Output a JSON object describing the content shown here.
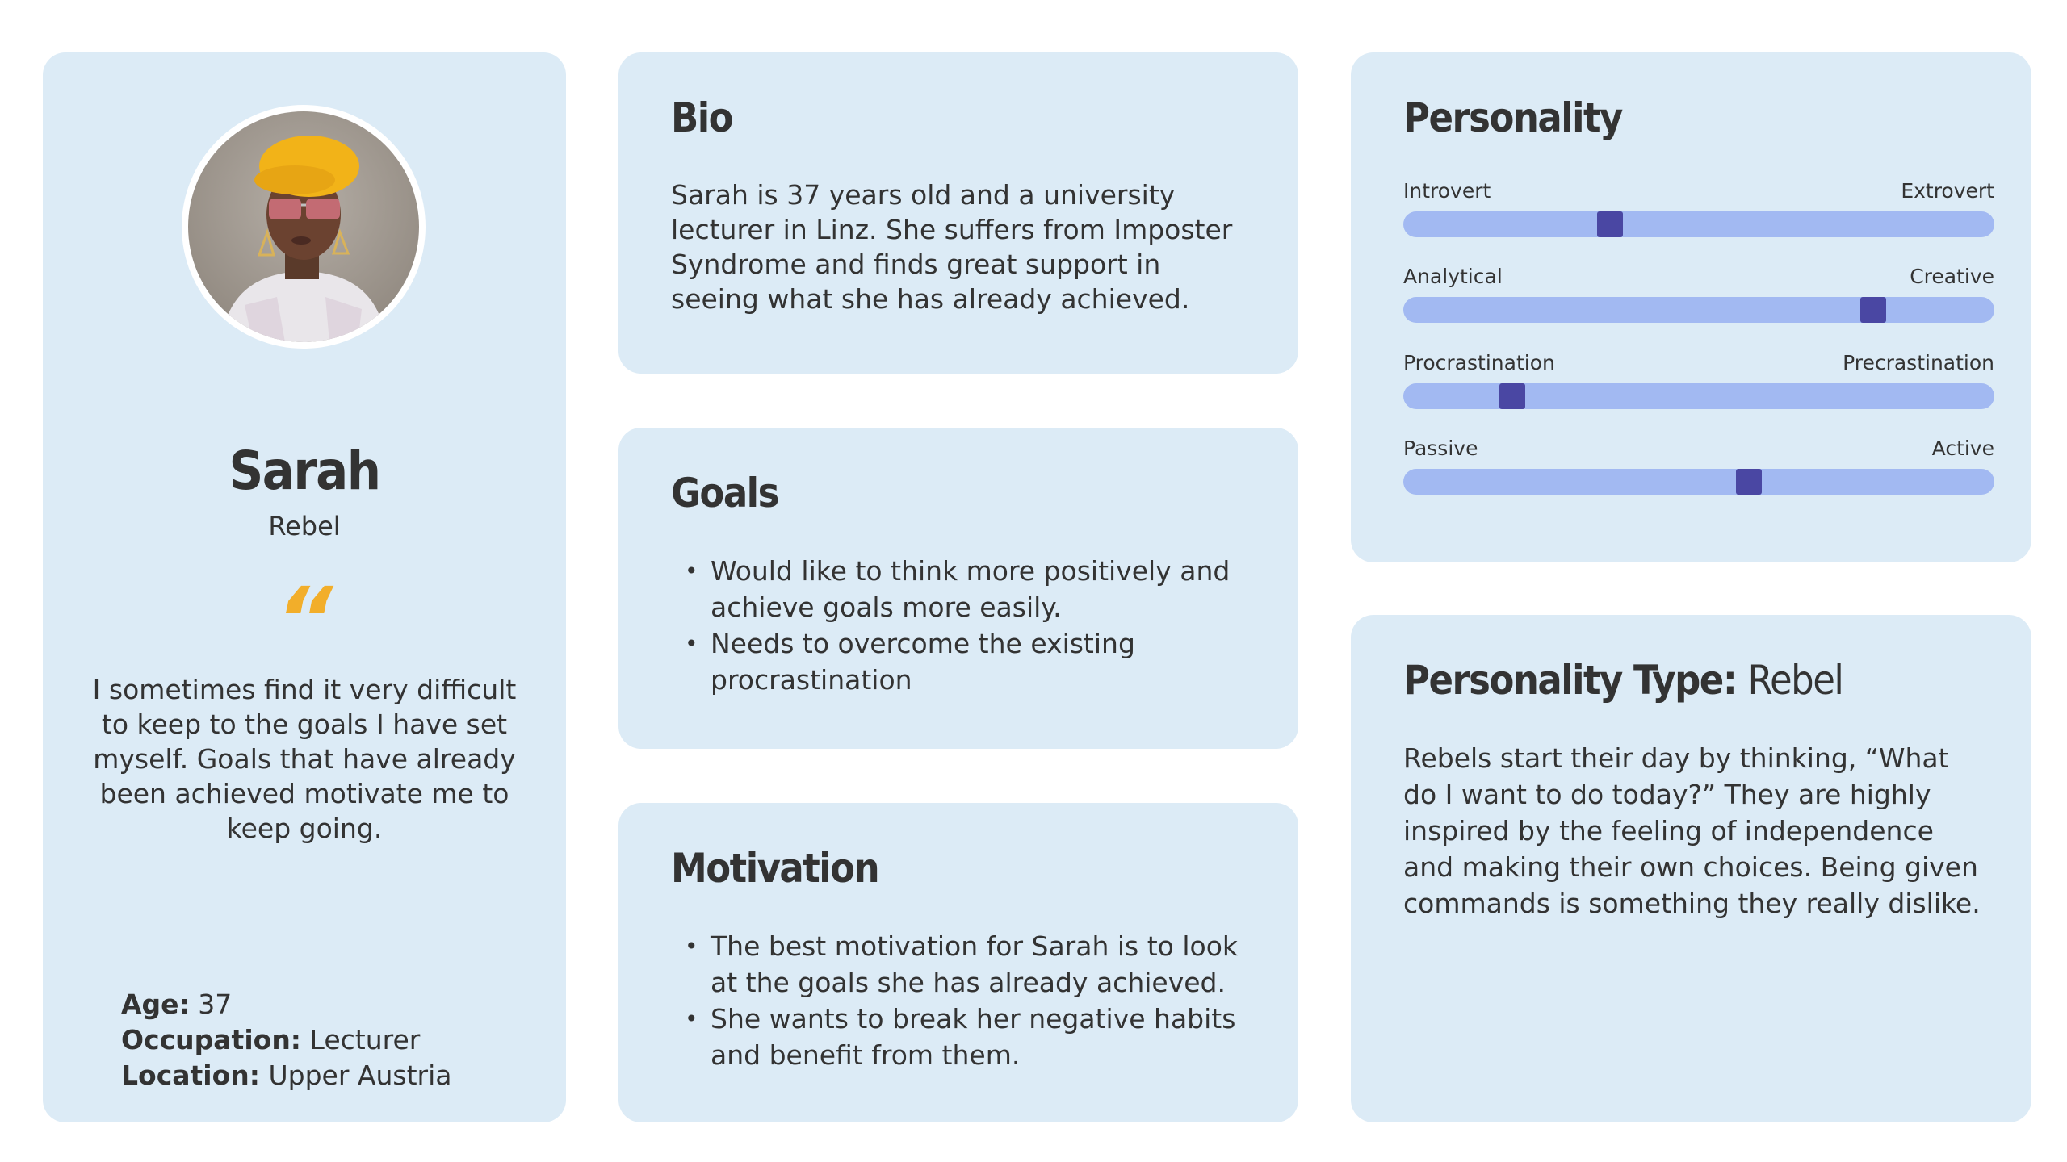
{
  "profile": {
    "name": "Sarah",
    "subtitle": "Rebel",
    "quote_mark": "“",
    "quote": "I sometimes find it very difficult to keep to the goals I have set myself. Goals that have already been achieved motivate me to keep going.",
    "facts": [
      {
        "label": "Age:",
        "value": "37"
      },
      {
        "label": "Occupation:",
        "value": "Lecturer"
      },
      {
        "label": "Location:",
        "value": "Upper Austria"
      }
    ]
  },
  "bio": {
    "title": "Bio",
    "text": "Sarah is 37 years old and a university lecturer in Linz. She suffers from Imposter Syndrome and finds great support in seeing what she has already achieved."
  },
  "goals": {
    "title": "Goals",
    "items": [
      "Would like to think more positively and achieve goals more easily.",
      "Needs to overcome the existing procrastination"
    ]
  },
  "motivation": {
    "title": "Motivation",
    "items": [
      "The best motivation for Sarah is to look at the goals she has already achieved.",
      "She wants to break her negative habits and benefit from them."
    ]
  },
  "personality": {
    "title": "Personality",
    "scales": [
      {
        "left": "Introvert",
        "right": "Extrovert",
        "level": 0.35
      },
      {
        "left": "Analytical",
        "right": "Creative",
        "level": 0.795
      },
      {
        "left": "Procrastination",
        "right": "Precrastination",
        "level": 0.185
      },
      {
        "left": "Passive",
        "right": "Active",
        "level": 0.585
      }
    ]
  },
  "personality_type": {
    "label": "Personality Type:",
    "value": "Rebel",
    "text": "Rebels start their day by thinking, “What do I want to do today?” They are highly inspired by the feeling of independence and making their own choices. Being given commands is something they really dislike."
  },
  "colors": {
    "card": "#dcebf6",
    "quote_accent": "#f2ae2a",
    "track": "#a2b9f2",
    "thumb": "#4a47a3"
  }
}
